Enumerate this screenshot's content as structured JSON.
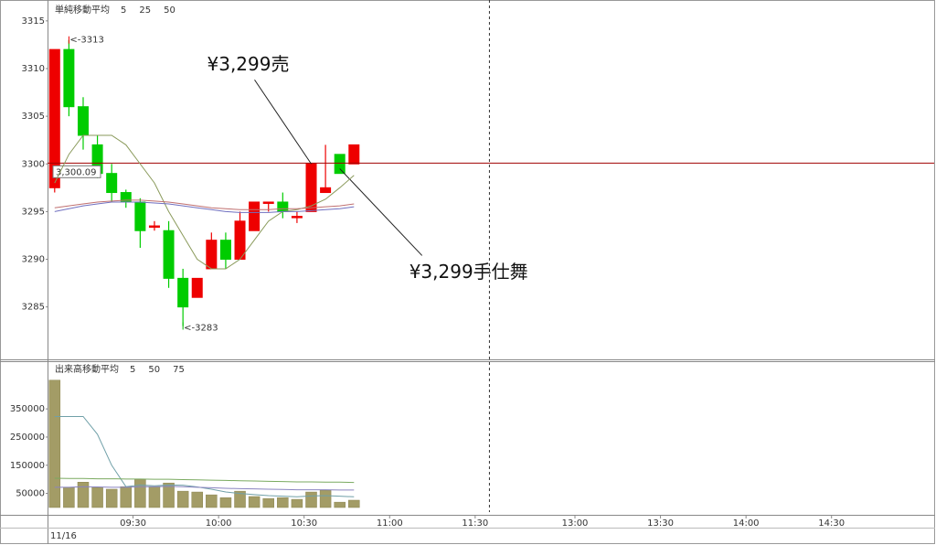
{
  "chart_data": [
    {
      "type": "candlestick",
      "legend_title": "単純移動平均",
      "x": [
        540,
        545,
        550,
        555,
        560,
        565,
        570,
        575,
        580,
        585,
        590,
        595,
        600,
        605,
        610,
        615,
        620,
        625,
        630,
        635,
        640,
        645
      ],
      "open": [
        3297.5,
        3312,
        3306,
        3302,
        3299,
        3297,
        3296,
        3293.5,
        3293,
        3288,
        3286,
        3289,
        3292,
        3290,
        3293,
        3296,
        3296,
        3294.5,
        3295,
        3297,
        3301,
        3300
      ],
      "high": [
        3312,
        3313,
        3307,
        3303,
        3300,
        3297.3,
        3296.4,
        3294,
        3294,
        3289,
        3288,
        3292.8,
        3292.8,
        3295,
        3296,
        3296,
        3297,
        3295,
        3300,
        3302,
        3301,
        3302
      ],
      "low": [
        3297,
        3305,
        3301.5,
        3298.5,
        3296,
        3295.4,
        3291.2,
        3293,
        3287,
        3283,
        3286,
        3289,
        3289,
        3290,
        3293,
        3295,
        3294.3,
        3293.8,
        3295,
        3297,
        3299,
        3300
      ],
      "close": [
        3312,
        3306,
        3303,
        3299,
        3297,
        3296,
        3293,
        3293.5,
        3288,
        3285,
        3288,
        3292,
        3290,
        3294,
        3296,
        3296,
        3295,
        3294.5,
        3300,
        3297.5,
        3299,
        3302
      ],
      "up_color": "#ee0000",
      "down_color": "#00cc00",
      "series": [
        {
          "name": "5",
          "color": "#8a9a5b",
          "values": [
            3298,
            3301,
            3303,
            3303,
            3303,
            3302,
            3300,
            3298,
            3295,
            3292.5,
            3290,
            3289,
            3289,
            3290,
            3292,
            3294,
            3295,
            3295.2,
            3295.6,
            3296.3,
            3297.5,
            3298.8
          ]
        },
        {
          "name": "25",
          "color": "#c07070",
          "values": [
            3295.4,
            3295.6,
            3295.8,
            3296,
            3296.1,
            3296.2,
            3296.2,
            3296.1,
            3296,
            3295.8,
            3295.6,
            3295.4,
            3295.3,
            3295.2,
            3295.2,
            3295.2,
            3295.3,
            3295.3,
            3295.4,
            3295.5,
            3295.6,
            3295.8
          ]
        },
        {
          "name": "50",
          "color": "#7070c0",
          "values": [
            3295,
            3295.3,
            3295.6,
            3295.8,
            3296,
            3296,
            3296,
            3295.9,
            3295.8,
            3295.6,
            3295.4,
            3295.2,
            3295,
            3294.9,
            3294.9,
            3294.9,
            3295,
            3295,
            3295.1,
            3295.2,
            3295.3,
            3295.5
          ]
        }
      ],
      "reference_line": {
        "value": 3300.09,
        "label": "3,300.09",
        "color": "#a00000"
      },
      "annotations": [
        {
          "text": "¥3,299売",
          "x": 630,
          "y": 3300
        },
        {
          "text": "¥3,299手仕舞",
          "x": 640,
          "y": 3299.5
        },
        {
          "text": "<-3313",
          "x": 545,
          "y": 3313,
          "color": "#ee0000"
        },
        {
          "text": "<-3283",
          "x": 585,
          "y": 3283,
          "color": "#00bb00"
        }
      ],
      "xlim": [
        540,
        906
      ],
      "xbreak": [
        695,
        750
      ],
      "ylim": [
        3279.5,
        3317
      ],
      "yticks": [
        3285,
        3290,
        3295,
        3300,
        3305,
        3310,
        3315
      ]
    },
    {
      "type": "bar",
      "legend_title": "出来高移動平均",
      "x": [
        540,
        545,
        550,
        555,
        560,
        565,
        570,
        575,
        580,
        585,
        590,
        595,
        600,
        605,
        610,
        615,
        620,
        625,
        630,
        635,
        640,
        645
      ],
      "values": [
        452000,
        71000,
        90000,
        71000,
        65000,
        74000,
        100000,
        74000,
        87000,
        58000,
        55000,
        45000,
        35000,
        58000,
        39000,
        32000,
        35000,
        29000,
        55000,
        61000,
        19000,
        26000
      ],
      "color": "#a39c66",
      "series": [
        {
          "name": "5",
          "color": "#70a0a8",
          "values": [
            323000,
            323000,
            323000,
            260000,
            150000,
            74000,
            80000,
            77000,
            80000,
            79000,
            73000,
            65000,
            55000,
            50000,
            46000,
            42000,
            40000,
            38000,
            41000,
            42000,
            40000,
            38000
          ]
        },
        {
          "name": "50",
          "color": "#8a84c0",
          "values": [
            72000,
            72000,
            74000,
            73000,
            72000,
            72000,
            74000,
            74000,
            75000,
            74000,
            72000,
            70000,
            68000,
            67000,
            66000,
            65000,
            64000,
            63000,
            63000,
            63000,
            62000,
            62000
          ]
        },
        {
          "name": "75",
          "color": "#7aaa60",
          "values": [
            104000,
            103000,
            103000,
            102000,
            102000,
            101000,
            101000,
            100000,
            100000,
            99000,
            98000,
            97000,
            96000,
            95000,
            94000,
            93000,
            92000,
            91000,
            91000,
            90000,
            90000,
            89000
          ]
        }
      ],
      "xlim": [
        540,
        906
      ],
      "xbreak": [
        695,
        750
      ],
      "xticks": [
        {
          "value": 570,
          "label": "09:30"
        },
        {
          "value": 600,
          "label": "10:00"
        },
        {
          "value": 630,
          "label": "10:30"
        },
        {
          "value": 660,
          "label": "11:00"
        },
        {
          "value": 690,
          "label": "11:30"
        },
        {
          "value": 780,
          "label": "13:00"
        },
        {
          "value": 810,
          "label": "13:30"
        },
        {
          "value": 840,
          "label": "14:00"
        },
        {
          "value": 870,
          "label": "14:30"
        }
      ],
      "date_label": "11/16",
      "ylim": [
        0,
        516000
      ],
      "yticks": [
        50000,
        150000,
        250000,
        350000
      ]
    }
  ]
}
